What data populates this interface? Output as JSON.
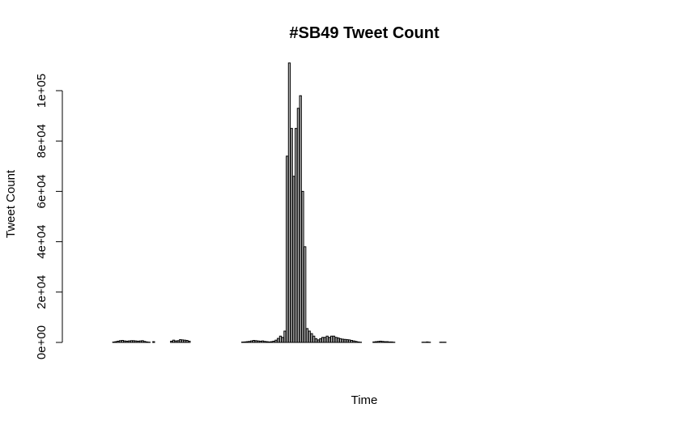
{
  "chart_data": {
    "type": "bar",
    "title": "#SB49 Tweet Count",
    "xlabel": "Time",
    "ylabel": "Tweet Count",
    "ylim": [
      0,
      120000
    ],
    "yticks": [
      0,
      20000,
      40000,
      60000,
      80000,
      100000
    ],
    "ytick_labels": [
      "0e+00",
      "2e+04",
      "4e+04",
      "6e+04",
      "8e+04",
      "1e+05"
    ],
    "bar_fill": "#bebebe",
    "grid": false,
    "legend": "none",
    "values": [
      0,
      0,
      0,
      0,
      0,
      0,
      0,
      0,
      0,
      0,
      0,
      0,
      150,
      300,
      500,
      700,
      800,
      600,
      500,
      600,
      700,
      700,
      600,
      500,
      600,
      700,
      400,
      200,
      100,
      0,
      300,
      0,
      0,
      0,
      0,
      0,
      0,
      0,
      500,
      900,
      600,
      700,
      1100,
      1000,
      900,
      800,
      500,
      0,
      0,
      0,
      0,
      0,
      0,
      0,
      0,
      0,
      0,
      0,
      0,
      0,
      0,
      0,
      0,
      0,
      0,
      0,
      0,
      0,
      0,
      0,
      150,
      200,
      300,
      400,
      600,
      800,
      700,
      600,
      500,
      600,
      400,
      300,
      200,
      300,
      500,
      900,
      1600,
      2500,
      2000,
      4500,
      74000,
      111000,
      85000,
      66000,
      85000,
      93000,
      98000,
      60000,
      38000,
      5500,
      4500,
      3500,
      2500,
      1500,
      1000,
      1500,
      2000,
      2000,
      2500,
      2000,
      2500,
      2500,
      2000,
      1800,
      1500,
      1300,
      1200,
      1100,
      1000,
      800,
      600,
      400,
      200,
      100,
      0,
      0,
      0,
      0,
      0,
      200,
      300,
      400,
      500,
      400,
      300,
      300,
      200,
      200,
      100,
      0,
      0,
      0,
      0,
      0,
      0,
      0,
      0,
      0,
      0,
      0,
      0,
      100,
      100,
      200,
      100,
      0,
      0,
      0,
      0,
      100,
      100,
      100,
      0,
      0,
      0,
      0,
      0,
      0,
      0,
      0,
      0,
      0,
      0,
      0,
      0,
      0,
      0,
      0,
      0,
      0,
      0,
      0,
      0,
      0,
      0,
      0,
      0,
      0,
      0,
      0,
      0,
      0,
      0,
      0,
      0,
      0,
      0,
      0,
      0,
      0,
      0,
      0,
      0,
      0,
      0,
      0,
      0,
      0,
      0,
      0,
      0,
      0,
      0,
      0,
      0,
      0,
      0,
      0,
      0,
      0,
      0,
      0,
      0,
      0,
      0,
      0,
      0,
      0,
      0,
      0,
      0,
      0,
      0,
      0,
      0,
      0,
      0,
      0,
      0,
      0,
      0,
      0,
      0,
      0,
      0,
      0,
      0,
      0,
      0,
      0
    ]
  }
}
